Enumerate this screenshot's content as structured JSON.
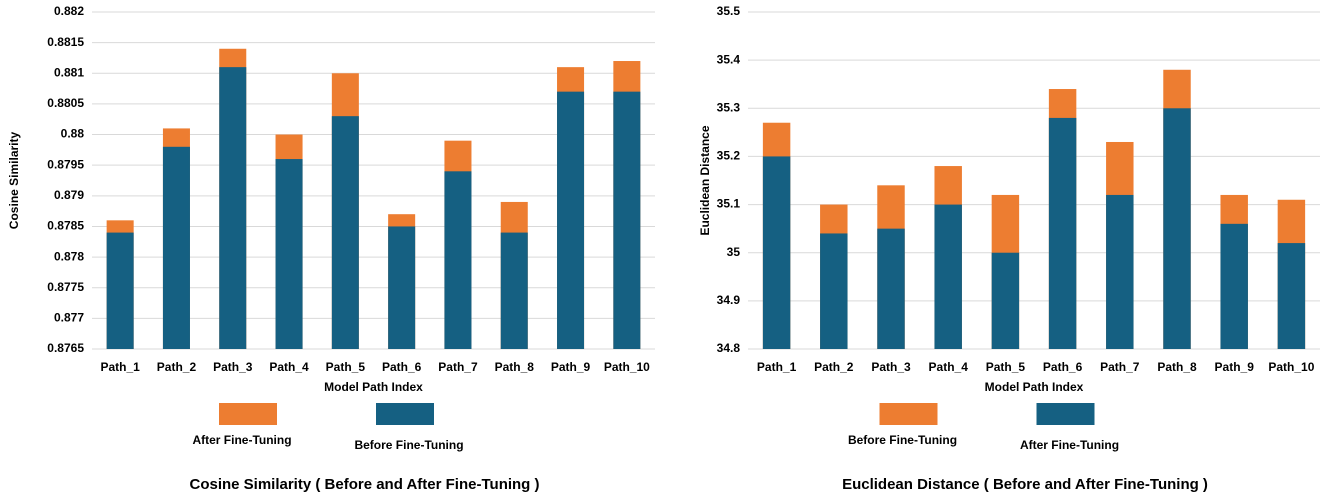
{
  "chart_data": [
    {
      "type": "bar",
      "title": "Cosine Similarity ( Before and After Fine-Tuning )",
      "x_label": "Model Path Index",
      "y_label": "Cosine Similarity",
      "categories": [
        "Path_1",
        "Path_2",
        "Path_3",
        "Path_4",
        "Path_5",
        "Path_6",
        "Path_7",
        "Path_8",
        "Path_9",
        "Path_10"
      ],
      "series": [
        {
          "name": "After Fine-Tuning",
          "color": "#ed7d31",
          "values": [
            0.8786,
            0.8801,
            0.8814,
            0.88,
            0.881,
            0.8787,
            0.8799,
            0.8789,
            0.8811,
            0.8812
          ]
        },
        {
          "name": "Before Fine-Tuning",
          "color": "#156082",
          "values": [
            0.8784,
            0.8798,
            0.8811,
            0.8796,
            0.8803,
            0.8785,
            0.8794,
            0.8784,
            0.8807,
            0.8807
          ]
        }
      ],
      "ylim": [
        0.8765,
        0.882
      ],
      "yticks": [
        0.8765,
        0.877,
        0.8775,
        0.878,
        0.8785,
        0.879,
        0.8795,
        0.88,
        0.8805,
        0.881,
        0.8815,
        0.882
      ],
      "grid": true,
      "legend": "bottom"
    },
    {
      "type": "bar",
      "title": "Euclidean Distance ( Before and After Fine-Tuning )",
      "x_label": "Model Path Index",
      "y_label": "Euclidean Distance",
      "categories": [
        "Path_1",
        "Path_2",
        "Path_3",
        "Path_4",
        "Path_5",
        "Path_6",
        "Path_7",
        "Path_8",
        "Path_9",
        "Path_10"
      ],
      "series": [
        {
          "name": "Before Fine-Tuning",
          "color": "#ed7d31",
          "values": [
            35.27,
            35.1,
            35.14,
            35.18,
            35.12,
            35.34,
            35.23,
            35.38,
            35.12,
            35.11
          ]
        },
        {
          "name": "After Fine-Tuning",
          "color": "#156082",
          "values": [
            35.2,
            35.04,
            35.05,
            35.1,
            35,
            35.28,
            35.12,
            35.3,
            35.06,
            35.02
          ]
        }
      ],
      "ylim": [
        34.8,
        35.5
      ],
      "yticks": [
        34.8,
        34.9,
        35,
        35.1,
        35.2,
        35.3,
        35.4,
        35.5
      ],
      "grid": true,
      "legend": "bottom"
    }
  ]
}
